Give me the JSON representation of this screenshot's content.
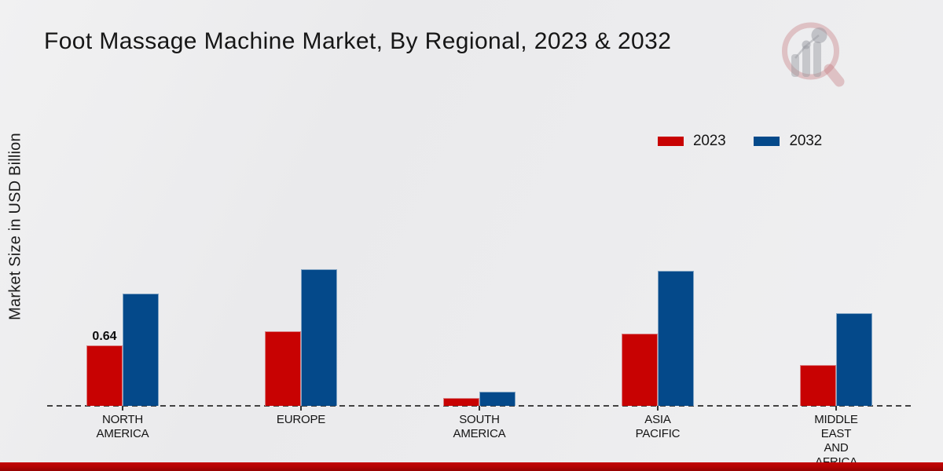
{
  "title": "Foot Massage Machine Market, By Regional, 2023 & 2032",
  "y_axis_label": "Market Size in USD Billion",
  "colors": {
    "series_2023": "#C80202",
    "series_2032": "#04498A",
    "axis_dash": "#424242",
    "text": "#1a1a1a",
    "footer_bar": "#B10303",
    "background": "#ECECEE"
  },
  "legend": {
    "items": [
      {
        "label": "2023",
        "color": "#C80202"
      },
      {
        "label": "2032",
        "color": "#04498A"
      }
    ]
  },
  "chart_data": {
    "type": "bar",
    "title": "Foot Massage Machine Market, By Regional, 2023 & 2032",
    "xlabel": "",
    "ylabel": "Market Size in USD Billion",
    "categories": [
      "NORTH AMERICA",
      "EUROPE",
      "SOUTH AMERICA",
      "ASIA PACIFIC",
      "MIDDLE EAST AND AFRICA"
    ],
    "series": [
      {
        "name": "2023",
        "color": "#C80202",
        "values": [
          0.64,
          0.79,
          0.08,
          0.77,
          0.43
        ]
      },
      {
        "name": "2032",
        "color": "#04498A",
        "values": [
          1.19,
          1.45,
          0.15,
          1.43,
          0.98
        ]
      }
    ],
    "annotations": [
      {
        "category_index": 0,
        "series_index": 0,
        "text": "0.64"
      }
    ],
    "ylim": [
      0,
      1.6
    ],
    "grid": false,
    "y_axis_ticks_visible": false,
    "legend_position": "top-right",
    "baseline_style": "dashed"
  },
  "watermark": {
    "name": "market-research-chart-logo"
  }
}
